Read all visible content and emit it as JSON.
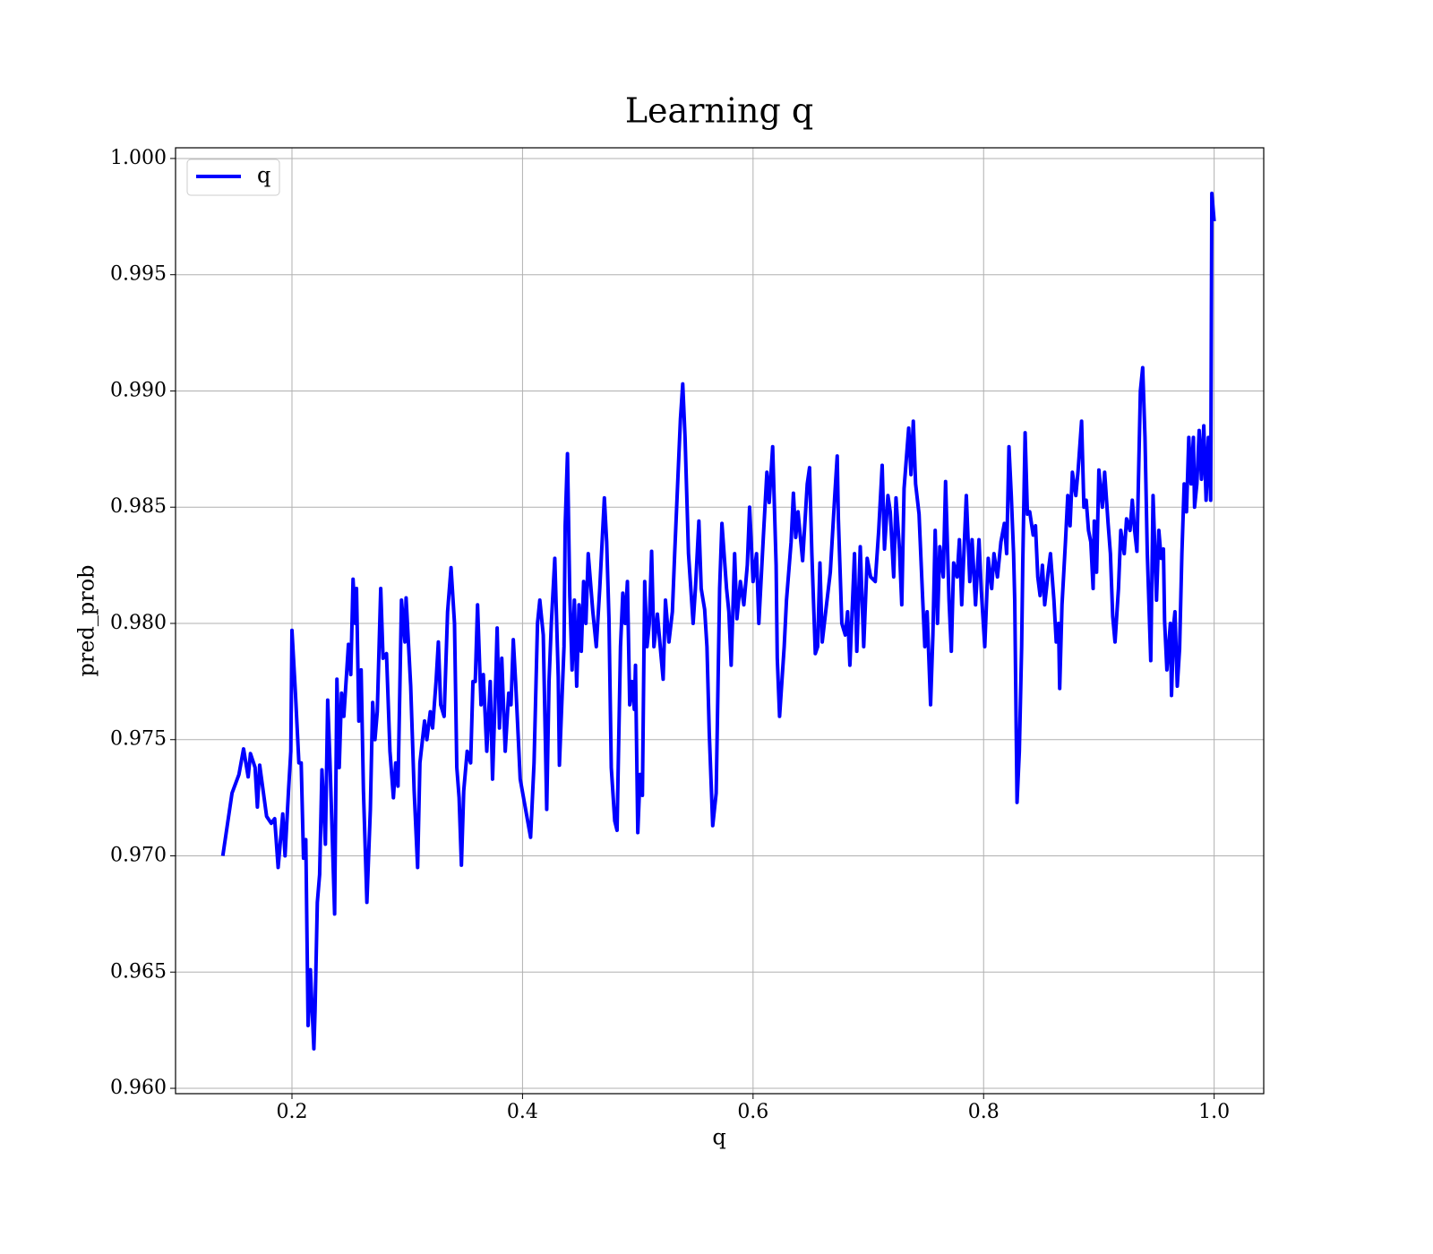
{
  "chart_data": {
    "type": "line",
    "title": "Learning q",
    "x_label": "q",
    "y_label": "pred_prob",
    "xlim": [
      0.099,
      1.043
    ],
    "ylim": [
      0.95977,
      1.00046
    ],
    "xticks": [
      0.2,
      0.4,
      0.6,
      0.8,
      {
        "value": 1.0,
        "label": "1.0"
      }
    ],
    "yticks": [
      {
        "value": 0.96,
        "label": "0.960"
      },
      0.965,
      {
        "value": 0.97,
        "label": "0.970"
      },
      0.975,
      {
        "value": 0.98,
        "label": "0.980"
      },
      0.985,
      {
        "value": 0.99,
        "label": "0.990"
      },
      0.995,
      {
        "value": 1.0,
        "label": "1.000"
      }
    ],
    "grid": true,
    "legend": "upper left",
    "x": [
      0.14,
      0.148,
      0.154,
      0.158,
      0.162,
      0.164,
      0.168,
      0.17,
      0.172,
      0.178,
      0.182,
      0.185,
      0.188,
      0.192,
      0.194,
      0.197,
      0.199,
      0.2,
      0.203,
      0.206,
      0.208,
      0.21,
      0.212,
      0.214,
      0.216,
      0.219,
      0.22,
      0.222,
      0.224,
      0.226,
      0.229,
      0.231,
      0.233,
      0.237,
      0.239,
      0.241,
      0.243,
      0.245,
      0.249,
      0.251,
      0.253,
      0.255,
      0.256,
      0.258,
      0.26,
      0.262,
      0.265,
      0.268,
      0.27,
      0.272,
      0.274,
      0.277,
      0.279,
      0.282,
      0.285,
      0.288,
      0.29,
      0.292,
      0.295,
      0.298,
      0.299,
      0.303,
      0.306,
      0.309,
      0.311,
      0.315,
      0.317,
      0.32,
      0.322,
      0.325,
      0.327,
      0.329,
      0.332,
      0.335,
      0.338,
      0.341,
      0.343,
      0.345,
      0.347,
      0.349,
      0.352,
      0.355,
      0.357,
      0.359,
      0.361,
      0.364,
      0.366,
      0.369,
      0.372,
      0.374,
      0.377,
      0.378,
      0.38,
      0.382,
      0.385,
      0.388,
      0.39,
      0.392,
      0.394,
      0.398,
      0.407,
      0.41,
      0.413,
      0.415,
      0.418,
      0.421,
      0.423,
      0.425,
      0.428,
      0.431,
      0.432,
      0.436,
      0.437,
      0.439,
      0.441,
      0.443,
      0.445,
      0.447,
      0.449,
      0.451,
      0.453,
      0.455,
      0.457,
      0.461,
      0.464,
      0.467,
      0.471,
      0.473,
      0.475,
      0.477,
      0.48,
      0.482,
      0.485,
      0.487,
      0.489,
      0.491,
      0.493,
      0.495,
      0.497,
      0.498,
      0.5,
      0.502,
      0.504,
      0.506,
      0.508,
      0.51,
      0.512,
      0.514,
      0.517,
      0.52,
      0.522,
      0.524,
      0.527,
      0.53,
      0.532,
      0.535,
      0.537,
      0.539,
      0.541,
      0.544,
      0.548,
      0.55,
      0.553,
      0.555,
      0.558,
      0.56,
      0.562,
      0.565,
      0.568,
      0.571,
      0.573,
      0.577,
      0.579,
      0.581,
      0.584,
      0.586,
      0.589,
      0.592,
      0.595,
      0.597,
      0.6,
      0.603,
      0.605,
      0.609,
      0.612,
      0.614,
      0.617,
      0.62,
      0.621,
      0.623,
      0.627,
      0.629,
      0.633,
      0.635,
      0.637,
      0.639,
      0.643,
      0.647,
      0.649,
      0.651,
      0.654,
      0.656,
      0.658,
      0.66,
      0.663,
      0.667,
      0.671,
      0.673,
      0.674,
      0.677,
      0.68,
      0.682,
      0.684,
      0.688,
      0.69,
      0.693,
      0.696,
      0.699,
      0.702,
      0.706,
      0.709,
      0.712,
      0.714,
      0.717,
      0.719,
      0.722,
      0.724,
      0.727,
      0.729,
      0.731,
      0.735,
      0.737,
      0.739,
      0.741,
      0.744,
      0.747,
      0.749,
      0.751,
      0.754,
      0.756,
      0.758,
      0.76,
      0.762,
      0.765,
      0.767,
      0.77,
      0.772,
      0.774,
      0.777,
      0.779,
      0.781,
      0.785,
      0.788,
      0.79,
      0.793,
      0.796,
      0.798,
      0.801,
      0.804,
      0.807,
      0.809,
      0.812,
      0.815,
      0.818,
      0.82,
      0.822,
      0.824,
      0.826,
      0.827,
      0.829,
      0.831,
      0.833,
      0.834,
      0.836,
      0.838,
      0.84,
      0.843,
      0.845,
      0.847,
      0.849,
      0.851,
      0.853,
      0.856,
      0.858,
      0.861,
      0.863,
      0.865,
      0.866,
      0.868,
      0.871,
      0.873,
      0.875,
      0.877,
      0.88,
      0.882,
      0.885,
      0.887,
      0.889,
      0.891,
      0.893,
      0.895,
      0.896,
      0.898,
      0.9,
      0.903,
      0.905,
      0.908,
      0.91,
      0.912,
      0.914,
      0.917,
      0.919,
      0.922,
      0.924,
      0.927,
      0.929,
      0.931,
      0.933,
      0.936,
      0.938,
      0.94,
      0.942,
      0.945,
      0.947,
      0.95,
      0.952,
      0.954,
      0.956,
      0.957,
      0.959,
      0.962,
      0.963,
      0.965,
      0.966,
      0.968,
      0.97,
      0.972,
      0.974,
      0.976,
      0.978,
      0.98,
      0.982,
      0.983,
      0.985,
      0.987,
      0.989,
      0.991,
      0.993,
      0.995,
      0.997,
      0.998,
      1.0
    ],
    "series": [
      {
        "name": "q",
        "color": "#0000ff",
        "values": [
          0.97,
          0.9727,
          0.9735,
          0.9746,
          0.9734,
          0.9744,
          0.9738,
          0.9721,
          0.9739,
          0.9717,
          0.9714,
          0.9716,
          0.9695,
          0.9718,
          0.97,
          0.9728,
          0.9745,
          0.9797,
          0.977,
          0.974,
          0.974,
          0.9699,
          0.9707,
          0.9627,
          0.9651,
          0.9617,
          0.9633,
          0.968,
          0.9692,
          0.9737,
          0.9705,
          0.9767,
          0.974,
          0.9675,
          0.9776,
          0.9738,
          0.977,
          0.976,
          0.9791,
          0.9778,
          0.9819,
          0.98,
          0.9815,
          0.9758,
          0.978,
          0.9728,
          0.968,
          0.972,
          0.9766,
          0.975,
          0.9762,
          0.9815,
          0.9785,
          0.9787,
          0.9745,
          0.9725,
          0.974,
          0.973,
          0.981,
          0.9792,
          0.9811,
          0.9773,
          0.9728,
          0.9695,
          0.974,
          0.9758,
          0.975,
          0.9762,
          0.9755,
          0.9775,
          0.9792,
          0.9765,
          0.976,
          0.9805,
          0.9824,
          0.98,
          0.9738,
          0.9725,
          0.9696,
          0.9728,
          0.9745,
          0.974,
          0.9775,
          0.9775,
          0.9808,
          0.9765,
          0.9778,
          0.9745,
          0.9775,
          0.9733,
          0.978,
          0.9798,
          0.9755,
          0.9785,
          0.9745,
          0.977,
          0.9765,
          0.9793,
          0.9775,
          0.9733,
          0.9708,
          0.974,
          0.98,
          0.981,
          0.9795,
          0.972,
          0.9775,
          0.98,
          0.9828,
          0.9777,
          0.9739,
          0.979,
          0.9842,
          0.9873,
          0.9812,
          0.978,
          0.981,
          0.9773,
          0.9808,
          0.9788,
          0.9818,
          0.98,
          0.983,
          0.9805,
          0.979,
          0.9815,
          0.9854,
          0.9835,
          0.9802,
          0.9738,
          0.9715,
          0.9711,
          0.979,
          0.9813,
          0.98,
          0.9818,
          0.9765,
          0.9775,
          0.9763,
          0.9782,
          0.971,
          0.9735,
          0.9726,
          0.9818,
          0.979,
          0.98,
          0.9831,
          0.979,
          0.9804,
          0.9787,
          0.9776,
          0.981,
          0.9792,
          0.9805,
          0.983,
          0.9865,
          0.9888,
          0.9903,
          0.988,
          0.983,
          0.98,
          0.9815,
          0.9844,
          0.9815,
          0.9806,
          0.979,
          0.9753,
          0.9713,
          0.9727,
          0.9815,
          0.9843,
          0.9815,
          0.9805,
          0.9782,
          0.983,
          0.9802,
          0.9818,
          0.9808,
          0.9825,
          0.985,
          0.9818,
          0.983,
          0.98,
          0.9838,
          0.9865,
          0.9852,
          0.9876,
          0.9825,
          0.9785,
          0.976,
          0.979,
          0.981,
          0.9835,
          0.9856,
          0.9837,
          0.9848,
          0.9827,
          0.986,
          0.9867,
          0.983,
          0.9787,
          0.979,
          0.9826,
          0.9792,
          0.9805,
          0.9822,
          0.9856,
          0.9872,
          0.9845,
          0.98,
          0.9795,
          0.9805,
          0.9782,
          0.983,
          0.9788,
          0.9833,
          0.979,
          0.9828,
          0.982,
          0.9818,
          0.984,
          0.9868,
          0.9832,
          0.9855,
          0.9848,
          0.982,
          0.9854,
          0.9832,
          0.9808,
          0.9858,
          0.9884,
          0.9864,
          0.9887,
          0.986,
          0.9847,
          0.9812,
          0.979,
          0.9805,
          0.9765,
          0.9795,
          0.984,
          0.98,
          0.9833,
          0.982,
          0.9861,
          0.981,
          0.9788,
          0.9826,
          0.982,
          0.9836,
          0.9808,
          0.9855,
          0.9818,
          0.9836,
          0.9808,
          0.9836,
          0.9814,
          0.979,
          0.9828,
          0.9815,
          0.983,
          0.982,
          0.9835,
          0.9843,
          0.983,
          0.9876,
          0.9855,
          0.983,
          0.981,
          0.9723,
          0.9745,
          0.979,
          0.9827,
          0.9882,
          0.9847,
          0.9848,
          0.9838,
          0.9842,
          0.982,
          0.9812,
          0.9825,
          0.9808,
          0.9822,
          0.983,
          0.981,
          0.9792,
          0.98,
          0.9772,
          0.9808,
          0.9835,
          0.9855,
          0.9842,
          0.9865,
          0.9855,
          0.9866,
          0.9887,
          0.985,
          0.9853,
          0.984,
          0.9835,
          0.9815,
          0.9844,
          0.9822,
          0.9866,
          0.985,
          0.9865,
          0.9843,
          0.983,
          0.9803,
          0.9792,
          0.9815,
          0.984,
          0.983,
          0.9845,
          0.984,
          0.9853,
          0.984,
          0.9831,
          0.99,
          0.991,
          0.988,
          0.983,
          0.9784,
          0.9855,
          0.981,
          0.984,
          0.9828,
          0.9832,
          0.9801,
          0.978,
          0.98,
          0.9769,
          0.98,
          0.9805,
          0.9773,
          0.9789,
          0.983,
          0.986,
          0.9848,
          0.988,
          0.986,
          0.988,
          0.985,
          0.986,
          0.9883,
          0.9862,
          0.9885,
          0.9853,
          0.988,
          0.9853,
          0.9985,
          0.9973
        ]
      }
    ]
  }
}
